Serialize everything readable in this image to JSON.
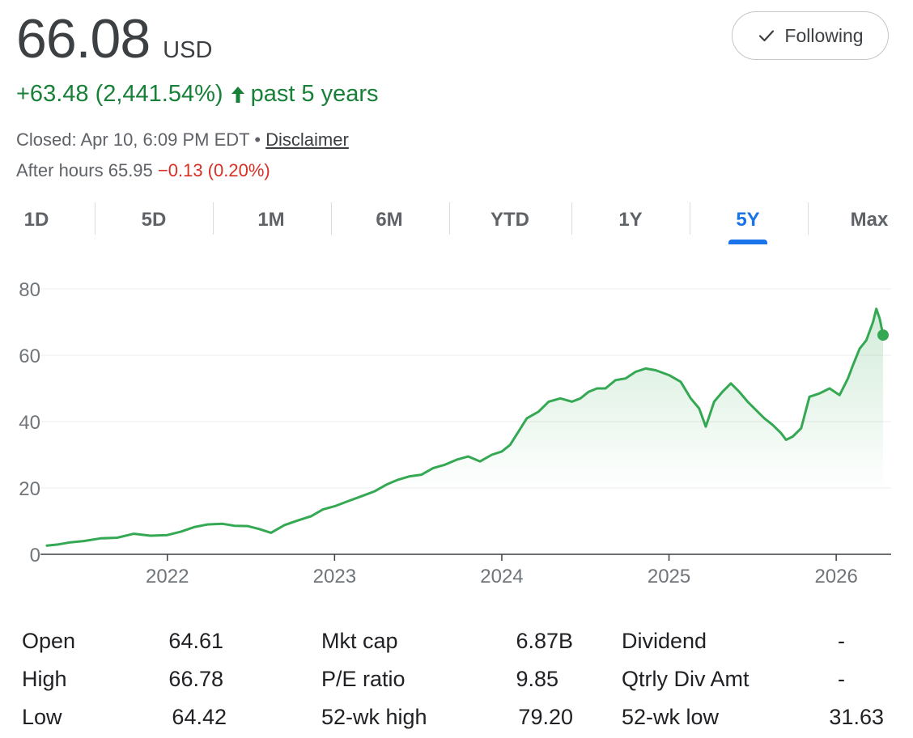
{
  "quote": {
    "price": "66.08",
    "currency": "USD",
    "change": "+63.48 (2,441.54%)",
    "period": "past 5 years",
    "closed": "Closed: Apr 10, 6:09 PM EDT",
    "bullet": "•",
    "disclaimer": "Disclaimer",
    "after_hours_label": "After hours 65.95",
    "after_hours_change": "−0.13 (0.20%)"
  },
  "follow_button": {
    "label": "Following",
    "icon": "check-icon"
  },
  "tabs": [
    {
      "label": "1D",
      "active": false
    },
    {
      "label": "5D",
      "active": false
    },
    {
      "label": "1M",
      "active": false
    },
    {
      "label": "6M",
      "active": false
    },
    {
      "label": "YTD",
      "active": false
    },
    {
      "label": "1Y",
      "active": false
    },
    {
      "label": "5Y",
      "active": true
    },
    {
      "label": "Max",
      "active": false
    }
  ],
  "colors": {
    "line": "#34a853",
    "positive": "#188038",
    "negative": "#d93025",
    "active_tab": "#1a73e8"
  },
  "chart_data": {
    "type": "area",
    "x_unit": "year",
    "xlim": [
      2021.28,
      2026.28
    ],
    "ylim": [
      0,
      80
    ],
    "yticks": [
      0,
      20,
      40,
      60,
      80
    ],
    "ytick_labels": [
      "0",
      "20",
      "40",
      "60",
      "80"
    ],
    "xticks": [
      2022,
      2023,
      2024,
      2025,
      2026
    ],
    "xtick_labels": [
      "2022",
      "2023",
      "2024",
      "2025",
      "2026"
    ],
    "grid": true,
    "series": [
      {
        "x": [
          2021.28,
          2021.35,
          2021.42,
          2021.5,
          2021.6,
          2021.7,
          2021.8,
          2021.9,
          2022.0,
          2022.08,
          2022.16,
          2022.24,
          2022.33,
          2022.4,
          2022.48,
          2022.55,
          2022.62,
          2022.7,
          2022.78,
          2022.86,
          2022.93,
          2023.0,
          2023.08,
          2023.16,
          2023.24,
          2023.31,
          2023.38,
          2023.45,
          2023.52,
          2023.59,
          2023.66,
          2023.73,
          2023.8,
          2023.87,
          2023.94,
          2024.0,
          2024.05,
          2024.1,
          2024.15,
          2024.22,
          2024.28,
          2024.35,
          2024.42,
          2024.47,
          2024.52,
          2024.57,
          2024.62,
          2024.68,
          2024.74,
          2024.8,
          2024.86,
          2024.92,
          2025.0,
          2025.07,
          2025.13,
          2025.18,
          2025.22,
          2025.27,
          2025.32,
          2025.37,
          2025.42,
          2025.47,
          2025.52,
          2025.57,
          2025.62,
          2025.67,
          2025.7,
          2025.74,
          2025.79,
          2025.84,
          2025.9,
          2025.96,
          2026.02,
          2026.07,
          2026.1,
          2026.14,
          2026.18,
          2026.22,
          2026.24,
          2026.26,
          2026.28
        ],
        "y": [
          2.6,
          3.0,
          3.6,
          4.0,
          4.8,
          5.0,
          6.2,
          5.6,
          5.8,
          6.8,
          8.2,
          9.0,
          9.2,
          8.6,
          8.5,
          7.6,
          6.5,
          8.8,
          10.2,
          11.5,
          13.5,
          14.5,
          16.0,
          17.5,
          19.0,
          21.0,
          22.5,
          23.5,
          24.0,
          26.0,
          27.0,
          28.5,
          29.5,
          28.0,
          30.0,
          31.0,
          33.0,
          37.0,
          41.0,
          43.0,
          46.0,
          47.0,
          46.0,
          47.0,
          49.0,
          50.0,
          50.0,
          52.5,
          53.0,
          55.0,
          56.0,
          55.5,
          54.0,
          52.0,
          47.0,
          44.0,
          38.5,
          46.0,
          49.0,
          51.5,
          49.0,
          46.0,
          43.5,
          41.0,
          39.0,
          36.5,
          34.5,
          35.5,
          38.0,
          47.5,
          48.5,
          50.0,
          48.0,
          53.0,
          57.0,
          62.0,
          64.5,
          70.0,
          74.0,
          71.0,
          66.08
        ]
      }
    ]
  },
  "stats": [
    [
      {
        "label": "Open",
        "value": "64.61"
      },
      {
        "label": "Mkt cap",
        "value": "6.87B"
      },
      {
        "label": "Dividend",
        "value": "-"
      }
    ],
    [
      {
        "label": "High",
        "value": "66.78"
      },
      {
        "label": "P/E ratio",
        "value": "9.85"
      },
      {
        "label": "Qtrly Div Amt",
        "value": "-"
      }
    ],
    [
      {
        "label": "Low",
        "value": "64.42"
      },
      {
        "label": "52-wk high",
        "value": "79.20"
      },
      {
        "label": "52-wk low",
        "value": "31.63"
      }
    ]
  ]
}
